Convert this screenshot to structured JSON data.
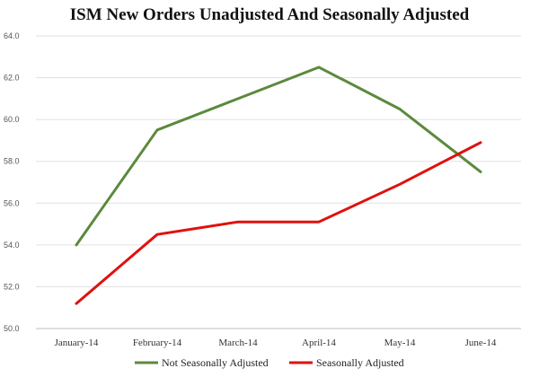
{
  "chart_data": {
    "type": "line",
    "title": "ISM New Orders Unadjusted And Seasonally Adjusted",
    "xlabel": "",
    "ylabel": "",
    "categories": [
      "January-14",
      "February-14",
      "March-14",
      "April-14",
      "May-14",
      "June-14"
    ],
    "ylim": [
      50.0,
      64.0
    ],
    "yticks": [
      "50.0",
      "52.0",
      "54.0",
      "56.0",
      "58.0",
      "60.0",
      "62.0",
      "64.0"
    ],
    "grid": "horizontal",
    "legend_position": "bottom",
    "series": [
      {
        "name": "Not Seasonally Adjusted",
        "color": "#5b8a3c",
        "values": [
          54.0,
          59.5,
          61.0,
          62.5,
          60.5,
          57.5
        ]
      },
      {
        "name": "Seasonally Adjusted",
        "color": "#e0110f",
        "values": [
          51.2,
          54.5,
          55.1,
          55.1,
          56.9,
          58.9
        ]
      }
    ]
  }
}
